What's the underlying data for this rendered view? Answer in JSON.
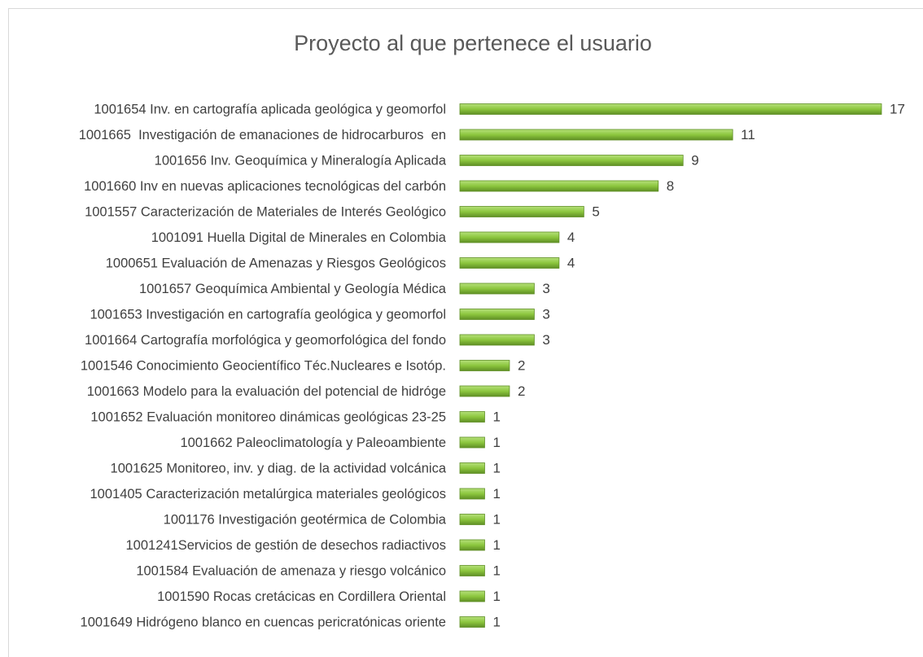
{
  "chart_data": {
    "type": "bar",
    "orientation": "horizontal",
    "title": "Proyecto al que pertenece el usuario",
    "categories": [
      "1001654 Inv. en cartografía aplicada geológica y geomorfol",
      "1001665  Investigación de emanaciones de hidrocarburos  en",
      "1001656 Inv. Geoquímica y Mineralogía Aplicada",
      "1001660 Inv en nuevas aplicaciones tecnológicas del carbón",
      "1001557 Caracterización de Materiales de Interés Geológico",
      "1001091 Huella Digital de Minerales en Colombia",
      "1000651 Evaluación de Amenazas y Riesgos Geológicos",
      "1001657 Geoquímica Ambiental y Geología Médica",
      "1001653 Investigación en cartografía geológica y geomorfol",
      "1001664 Cartografía morfológica y geomorfológica del fondo",
      "1001546 Conocimiento Geocientífico Téc.Nucleares e Isotóp.",
      "1001663 Modelo para la evaluación del potencial de hidróge",
      "1001652 Evaluación monitoreo dinámicas geológicas 23-25",
      "1001662 Paleoclimatología y Paleoambiente",
      "1001625 Monitoreo, inv. y diag. de la actividad volcánica",
      "1001405 Caracterización metalúrgica materiales geológicos",
      "1001176 Investigación geotérmica de Colombia",
      "1001241Servicios de gestión de desechos radiactivos",
      "1001584 Evaluación de amenaza y riesgo volcánico",
      "1001590 Rocas cretácicas en Cordillera Oriental",
      "1001649 Hidrógeno blanco en cuencas pericratónicas oriente"
    ],
    "values": [
      17,
      11,
      9,
      8,
      5,
      4,
      4,
      3,
      3,
      3,
      2,
      2,
      1,
      1,
      1,
      1,
      1,
      1,
      1,
      1,
      1
    ],
    "color": "#8cc63e"
  }
}
